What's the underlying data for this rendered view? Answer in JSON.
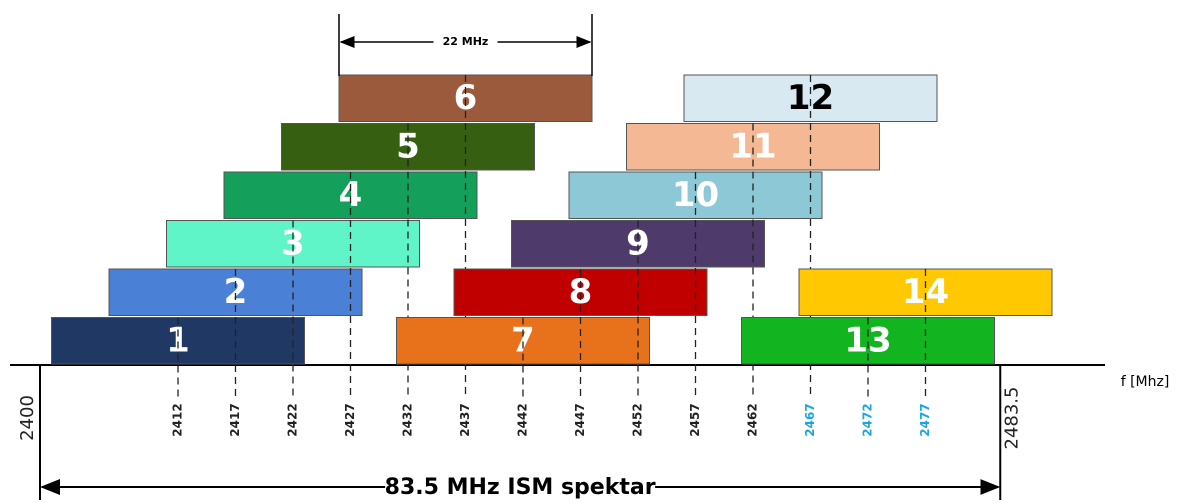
{
  "chart_data": {
    "type": "channels",
    "xlabel": "f [Mhz]",
    "band": {
      "value": 83.5,
      "label": "83.5 MHz ISM spektar"
    },
    "channel_width": {
      "value": 22,
      "label": "22 MHz"
    },
    "xlim": [
      2400,
      2483.5
    ],
    "xticks": [
      2412,
      2417,
      2422,
      2427,
      2432,
      2437,
      2442,
      2447,
      2452,
      2457,
      2462,
      2467,
      2472,
      2477
    ],
    "xtick_colors": [
      "#222",
      "#222",
      "#222",
      "#222",
      "#222",
      "#222",
      "#222",
      "#222",
      "#222",
      "#222",
      "#222",
      "#1aa7e0",
      "#1aa7e0",
      "#1aa7e0"
    ],
    "channels": [
      {
        "name": "1",
        "center": 2412,
        "color": "#1f3864",
        "text_color": "#fff"
      },
      {
        "name": "2",
        "center": 2417,
        "color": "#4a80d6",
        "text_color": "#fff"
      },
      {
        "name": "3",
        "center": 2422,
        "color": "#5ff5c8",
        "text_color": "#fff"
      },
      {
        "name": "4",
        "center": 2427,
        "color": "#14a05a",
        "text_color": "#fff"
      },
      {
        "name": "5",
        "center": 2432,
        "color": "#375f12",
        "text_color": "#fff"
      },
      {
        "name": "6",
        "center": 2437,
        "color": "#9b5a3c",
        "text_color": "#fff"
      },
      {
        "name": "7",
        "center": 2442,
        "color": "#e8721c",
        "text_color": "#fff"
      },
      {
        "name": "8",
        "center": 2447,
        "color": "#c00000",
        "text_color": "#fff"
      },
      {
        "name": "9",
        "center": 2452,
        "color": "#4e3b6b",
        "text_color": "#fff"
      },
      {
        "name": "10",
        "center": 2457,
        "color": "#8cc8d6",
        "text_color": "#fff"
      },
      {
        "name": "11",
        "center": 2462,
        "color": "#f5b894",
        "text_color": "#fff"
      },
      {
        "name": "12",
        "center": 2467,
        "color": "#d9e9f2",
        "text_color": "#000"
      },
      {
        "name": "13",
        "center": 2472,
        "color": "#12b520",
        "text_color": "#fff"
      },
      {
        "name": "14",
        "center": 2477,
        "color": "#ffc800",
        "text_color": "#fff"
      }
    ]
  }
}
